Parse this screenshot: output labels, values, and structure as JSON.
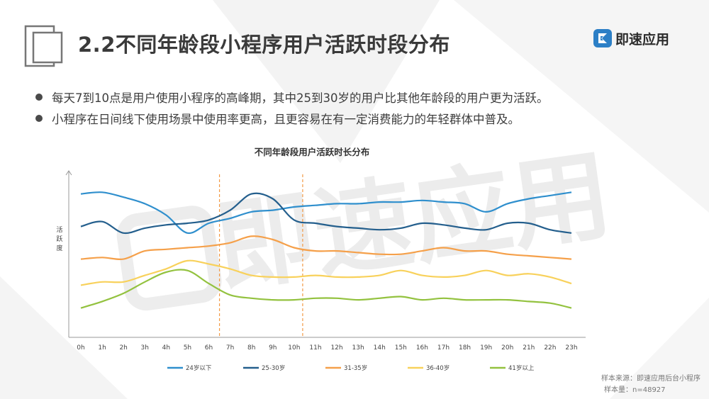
{
  "header": {
    "title": "2.2不同年龄段小程序用户活跃时段分布",
    "brand_name": "即速应用"
  },
  "bullets": [
    "每天7到10点是用户使用小程序的高峰期，其中25到30岁的用户比其他年龄段的用户更为活跃。",
    "小程序在日间线下使用场景中使用率更高，且更容易在有一定消费能力的年轻群体中普及。"
  ],
  "footer": {
    "source": "样本来源：即速应用后台小程序",
    "sample": "样本量：n=48927"
  },
  "watermark": "即速应用",
  "colors": {
    "accent": "#2c7fc6",
    "dash": "#f39a45"
  },
  "chart_data": {
    "type": "line",
    "title": "不同年龄段用户活跃时长分布",
    "ylabel": "活跃度",
    "xlabel": "",
    "x": [
      "0h",
      "1h",
      "2h",
      "3h",
      "4h",
      "5h",
      "6h",
      "7h",
      "8h",
      "9h",
      "10h",
      "11h",
      "12h",
      "13h",
      "14h",
      "15h",
      "16h",
      "17h",
      "18h",
      "19h",
      "20h",
      "21h",
      "22h",
      "23h"
    ],
    "ylim": [
      0,
      100
    ],
    "grid": false,
    "legend_position": "bottom",
    "highlight_range": [
      "6.5h",
      "10.4h"
    ],
    "series": [
      {
        "name": "24岁以下",
        "color": "#2f8fcd",
        "values": [
          88,
          89,
          86,
          82,
          75,
          64,
          70,
          73,
          77,
          78,
          80,
          81,
          82,
          82,
          83,
          83,
          84,
          83,
          82,
          77,
          82,
          85,
          87,
          89
        ]
      },
      {
        "name": "25-30岁",
        "color": "#245f8d",
        "values": [
          68,
          71,
          64,
          67,
          69,
          70,
          72,
          78,
          88,
          85,
          72,
          70,
          68,
          67,
          66,
          67,
          70,
          69,
          67,
          66,
          70,
          70,
          66,
          64
        ]
      },
      {
        "name": "31-35岁",
        "color": "#f5a04a",
        "values": [
          48,
          49,
          48,
          53,
          54,
          55,
          56,
          58,
          62,
          60,
          55,
          53,
          53,
          52,
          51,
          51,
          53,
          55,
          53,
          53,
          51,
          50,
          49,
          48
        ]
      },
      {
        "name": "36-40岁",
        "color": "#f8d15b",
        "values": [
          32,
          34,
          34,
          38,
          42,
          47,
          45,
          42,
          38,
          37,
          37,
          38,
          37,
          37,
          38,
          41,
          38,
          37,
          38,
          41,
          38,
          39,
          37,
          33
        ]
      },
      {
        "name": "41岁以上",
        "color": "#93c23f",
        "values": [
          18,
          22,
          27,
          34,
          40,
          41,
          33,
          26,
          24,
          23,
          23,
          24,
          24,
          23,
          24,
          25,
          23,
          24,
          23,
          23,
          23,
          22,
          21,
          18
        ]
      }
    ]
  }
}
